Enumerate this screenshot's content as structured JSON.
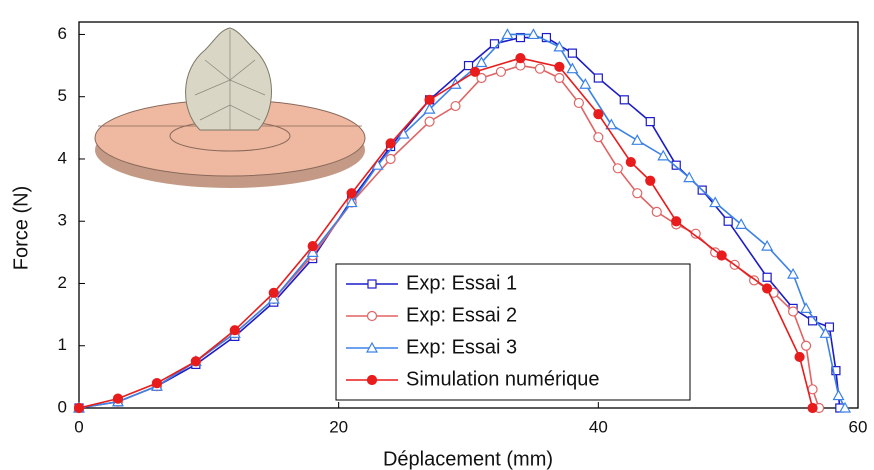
{
  "chart_data": {
    "type": "line",
    "x_label": "Déplacement (mm)",
    "y_label": "Force (N)",
    "xlim": [
      0,
      60
    ],
    "xticks": [
      0,
      20,
      40,
      60
    ],
    "ylim": [
      0,
      6.2
    ],
    "yticks": [
      0,
      1,
      2,
      3,
      4,
      5,
      6
    ],
    "grid": false,
    "legend": "lower center",
    "series": [
      {
        "name": "Exp: Essai 1",
        "color": "#1c1cc8",
        "marker": "square",
        "x": [
          0,
          3,
          6,
          9,
          12,
          15,
          18,
          21,
          24,
          27,
          30,
          32,
          34,
          36,
          38,
          40,
          42,
          44,
          46,
          48,
          50,
          53,
          55,
          56.5,
          57.8,
          58.3,
          58.6
        ],
        "values": [
          0,
          0.1,
          0.35,
          0.7,
          1.15,
          1.7,
          2.4,
          3.35,
          4.2,
          4.95,
          5.5,
          5.85,
          5.95,
          5.95,
          5.7,
          5.3,
          4.95,
          4.6,
          3.9,
          3.5,
          3.0,
          2.1,
          1.6,
          1.4,
          1.3,
          0.6,
          0
        ]
      },
      {
        "name": "Exp: Essai 2",
        "color": "#e06464",
        "marker": "circle",
        "x": [
          0,
          3,
          6,
          9,
          12,
          15,
          18,
          21,
          24,
          27,
          29,
          31,
          32.5,
          34,
          35.5,
          37,
          38.5,
          40,
          41.5,
          43,
          44.5,
          46,
          47.5,
          49,
          50.5,
          52,
          53.5,
          55,
          56,
          56.5,
          57
        ],
        "values": [
          0,
          0.1,
          0.35,
          0.75,
          1.2,
          1.75,
          2.45,
          3.3,
          4.0,
          4.6,
          4.85,
          5.3,
          5.4,
          5.5,
          5.45,
          5.3,
          4.9,
          4.35,
          3.85,
          3.45,
          3.15,
          2.95,
          2.8,
          2.5,
          2.3,
          2.05,
          1.85,
          1.55,
          1.0,
          0.3,
          0
        ]
      },
      {
        "name": "Exp: Essai 3",
        "color": "#3c82e6",
        "marker": "triangle",
        "x": [
          0,
          3,
          6,
          9,
          12,
          15,
          18,
          21,
          23,
          25,
          27,
          29,
          31,
          33,
          35,
          37,
          38,
          39,
          41,
          43,
          45,
          47,
          49,
          51,
          53,
          55,
          56,
          57.5,
          58.5,
          59
        ],
        "values": [
          0,
          0.1,
          0.35,
          0.75,
          1.2,
          1.75,
          2.5,
          3.3,
          3.9,
          4.4,
          4.8,
          5.2,
          5.55,
          6.0,
          6.0,
          5.8,
          5.45,
          5.2,
          4.55,
          4.3,
          4.05,
          3.7,
          3.3,
          2.95,
          2.6,
          2.15,
          1.6,
          1.2,
          0.2,
          0
        ]
      },
      {
        "name": "Simulation numérique",
        "color": "#e81c1c",
        "marker": "filled-circle",
        "x": [
          0,
          3,
          6,
          9,
          12,
          15,
          18,
          21,
          24,
          27,
          30.5,
          34,
          37,
          40,
          42.5,
          44,
          46,
          49.5,
          53,
          55.5,
          56.5
        ],
        "values": [
          0,
          0.15,
          0.4,
          0.75,
          1.25,
          1.85,
          2.6,
          3.45,
          4.25,
          4.95,
          5.4,
          5.62,
          5.48,
          4.72,
          3.95,
          3.65,
          3.0,
          2.45,
          1.92,
          0.82,
          0
        ]
      }
    ]
  }
}
